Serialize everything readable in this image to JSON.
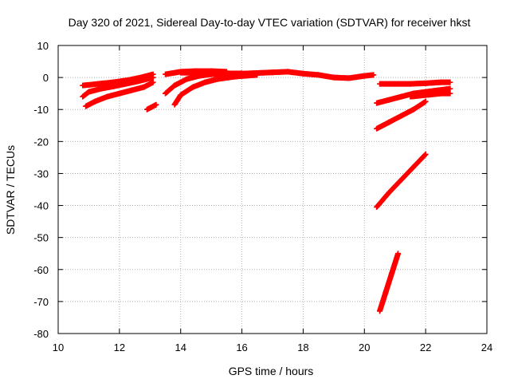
{
  "chart_data": {
    "type": "scatter",
    "title": "Day 320 of 2021, Sidereal Day-to-day VTEC variation (SDTVAR) for receiver hkst",
    "xlabel": "GPS time / hours",
    "ylabel": "SDTVAR / TECUs",
    "xlim": [
      10,
      24
    ],
    "ylim": [
      -80,
      10
    ],
    "x_ticks": [
      10,
      12,
      14,
      16,
      18,
      20,
      22,
      24
    ],
    "y_ticks": [
      10,
      0,
      -10,
      -20,
      -30,
      -40,
      -50,
      -60,
      -70,
      -80
    ],
    "grid": true,
    "marker_color": "#ff0000",
    "series": [
      {
        "x": [
          10.8,
          11.3,
          11.8,
          12.3,
          12.7,
          13.1
        ],
        "y": [
          -2.5,
          -2.0,
          -1.5,
          -0.8,
          0.0,
          1.0
        ]
      },
      {
        "x": [
          10.8,
          11.0,
          11.4,
          11.8,
          12.2,
          12.6,
          13.1
        ],
        "y": [
          -6.0,
          -4.5,
          -3.5,
          -2.8,
          -2.0,
          -1.2,
          0.0
        ]
      },
      {
        "x": [
          10.9,
          11.2,
          11.6,
          12.0,
          12.4,
          12.8,
          13.1
        ],
        "y": [
          -9.0,
          -7.5,
          -6.0,
          -5.0,
          -4.0,
          -3.0,
          -1.5
        ]
      },
      {
        "x": [
          12.9,
          13.2
        ],
        "y": [
          -10.0,
          -8.5
        ]
      },
      {
        "x": [
          13.5,
          14.0,
          14.5,
          15.0,
          15.5
        ],
        "y": [
          1.0,
          1.8,
          2.0,
          2.0,
          1.8
        ]
      },
      {
        "x": [
          13.5,
          13.8,
          14.2,
          14.6,
          15.0,
          15.5,
          16.0
        ],
        "y": [
          -5.0,
          -2.5,
          -0.5,
          0.5,
          1.0,
          1.2,
          1.3
        ]
      },
      {
        "x": [
          13.8,
          14.0,
          14.4,
          14.8,
          15.2,
          15.8,
          16.5
        ],
        "y": [
          -8.5,
          -5.5,
          -3.0,
          -1.5,
          -0.5,
          0.3,
          0.8
        ]
      },
      {
        "x": [
          14.0,
          14.5,
          15.0,
          15.5,
          16.0,
          16.5,
          17.0,
          17.5,
          18.0,
          18.5,
          19.0,
          19.5,
          20.0,
          20.3
        ],
        "y": [
          1.5,
          1.5,
          1.5,
          1.3,
          1.2,
          1.4,
          1.6,
          1.8,
          1.2,
          0.8,
          0.0,
          -0.2,
          0.5,
          0.8
        ]
      },
      {
        "x": [
          20.4,
          20.8,
          21.2,
          21.6,
          22.0,
          22.4,
          22.8
        ],
        "y": [
          -8.0,
          -7.0,
          -6.0,
          -5.0,
          -4.5,
          -4.0,
          -3.5
        ]
      },
      {
        "x": [
          20.5,
          21.0,
          21.5,
          22.0,
          22.5,
          22.8
        ],
        "y": [
          -2.0,
          -2.0,
          -2.0,
          -1.8,
          -1.5,
          -1.5
        ]
      },
      {
        "x": [
          21.5,
          22.0,
          22.5,
          22.8
        ],
        "y": [
          -6.0,
          -5.5,
          -5.0,
          -5.0
        ]
      },
      {
        "x": [
          20.4,
          20.8,
          21.2,
          21.6,
          22.0
        ],
        "y": [
          -16.0,
          -14.0,
          -12.0,
          -10.0,
          -7.5
        ]
      },
      {
        "x": [
          20.4,
          20.8,
          21.2,
          21.6,
          22.0
        ],
        "y": [
          -40.5,
          -36.0,
          -32.0,
          -28.0,
          -24.0
        ]
      },
      {
        "x": [
          20.5,
          20.7,
          20.9,
          21.1
        ],
        "y": [
          -73.0,
          -67.0,
          -61.0,
          -55.0
        ]
      }
    ]
  }
}
